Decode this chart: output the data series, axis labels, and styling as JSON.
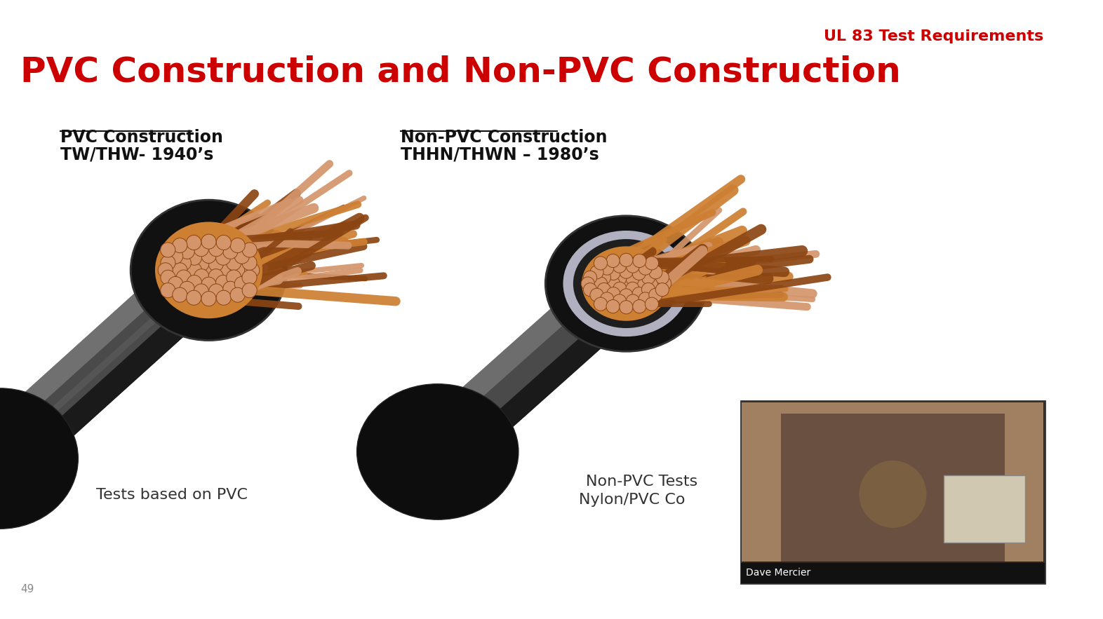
{
  "bg_color": "#ffffff",
  "slide_title": "PVC Construction and Non-PVC Construction",
  "slide_subtitle": "UL 83 Test Requirements",
  "slide_title_color": "#cc0000",
  "slide_subtitle_color": "#cc0000",
  "slide_title_fontsize": 36,
  "slide_subtitle_fontsize": 16,
  "page_number": "49",
  "left_label1": "PVC Construction",
  "left_label2": "TW/THW- 1940’s",
  "left_caption": "Tests based on PVC",
  "right_label1": "Non-PVC Construction",
  "right_label2": "THHN/THWN – 1980’s",
  "right_caption_line1": "Non-PVC Tests",
  "right_caption_line2": "Nylon/PVC Co",
  "label_color": "#111111",
  "caption_color": "#333333",
  "label_fontsize": 17,
  "caption_fontsize": 16,
  "dave_mercier_label": "Dave Mercier",
  "copper_dark": "#8B4513",
  "copper_mid": "#CD7F32",
  "copper_light": "#D4956A"
}
